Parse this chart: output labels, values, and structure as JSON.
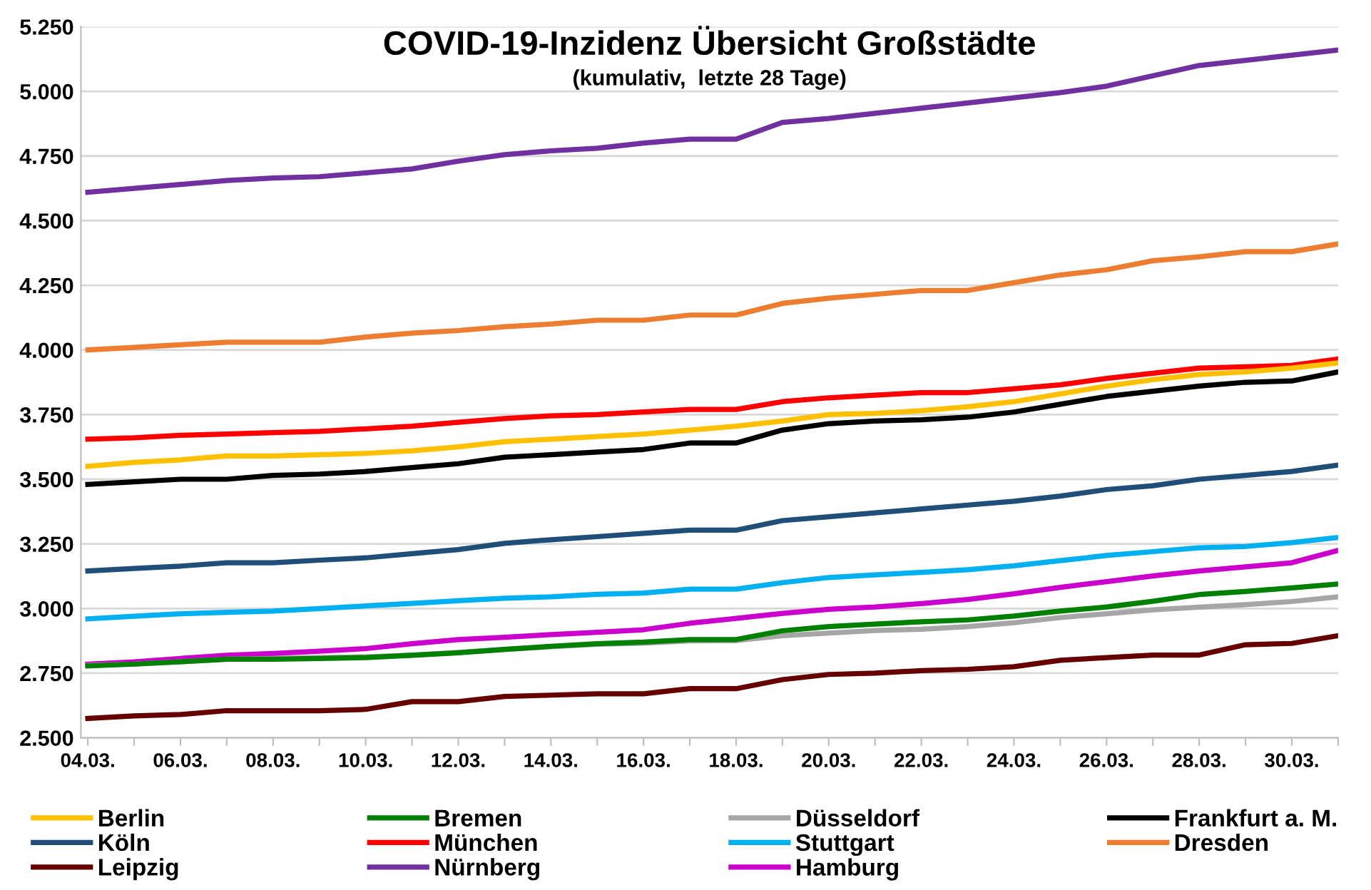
{
  "chart_data": {
    "type": "line",
    "title": "COVID-19-Inzidenz Übersicht Großstädte",
    "subtitle": "(kumulativ,  letzte 28 Tage)",
    "categories": [
      "04.03.",
      null,
      "06.03.",
      null,
      "08.03.",
      null,
      "10.03.",
      null,
      "12.03.",
      null,
      "14.03.",
      null,
      "16.03.",
      null,
      "18.03.",
      null,
      "20.03.",
      null,
      "22.03.",
      null,
      "24.03.",
      null,
      "26.03.",
      null,
      "28.03.",
      null,
      "30.03.",
      null
    ],
    "ylim": [
      2500,
      5250
    ],
    "yticks": [
      {
        "value": 2500,
        "label": "2.500"
      },
      {
        "value": 2750,
        "label": "2.750"
      },
      {
        "value": 3000,
        "label": "3.000"
      },
      {
        "value": 3250,
        "label": "3.250"
      },
      {
        "value": 3500,
        "label": "3.500"
      },
      {
        "value": 3750,
        "label": "3.750"
      },
      {
        "value": 4000,
        "label": "4.000"
      },
      {
        "value": 4250,
        "label": "4.250"
      },
      {
        "value": 4500,
        "label": "4.500"
      },
      {
        "value": 4750,
        "label": "4.750"
      },
      {
        "value": 5000,
        "label": "5.000"
      },
      {
        "value": 5250,
        "label": "5.250"
      }
    ],
    "grid": "y",
    "legend": "bottom",
    "line_style": "solid",
    "marker": "none",
    "series": [
      {
        "name": "Berlin",
        "color": "#ffc000",
        "values": [
          3550,
          3565,
          3575,
          3590,
          3590,
          3595,
          3600,
          3610,
          3625,
          3645,
          3655,
          3665,
          3675,
          3690,
          3705,
          3725,
          3750,
          3755,
          3765,
          3780,
          3800,
          3830,
          3860,
          3885,
          3905,
          3915,
          3930,
          3950
        ]
      },
      {
        "name": "Bremen",
        "color": "#008000",
        "values": [
          2778,
          2785,
          2794,
          2804,
          2804,
          2807,
          2810,
          2819,
          2829,
          2842,
          2854,
          2864,
          2870,
          2880,
          2880,
          2914,
          2930,
          2940,
          2949,
          2956,
          2971,
          2990,
          3006,
          3028,
          3054,
          3066,
          3080,
          3095
        ]
      },
      {
        "name": "Düsseldorf",
        "color": "#a6a6a6",
        "values": [
          2780,
          2785,
          2794,
          2804,
          2807,
          2810,
          2813,
          2820,
          2830,
          2842,
          2852,
          2862,
          2866,
          2875,
          2876,
          2895,
          2905,
          2915,
          2920,
          2930,
          2945,
          2965,
          2980,
          2995,
          3005,
          3015,
          3027,
          3045
        ]
      },
      {
        "name": "Frankfurt a. M.",
        "color": "#000000",
        "values": [
          3480,
          3490,
          3500,
          3500,
          3515,
          3520,
          3530,
          3545,
          3560,
          3585,
          3595,
          3605,
          3615,
          3640,
          3640,
          3690,
          3715,
          3725,
          3730,
          3740,
          3760,
          3790,
          3820,
          3840,
          3860,
          3875,
          3880,
          3915
        ]
      },
      {
        "name": "Köln",
        "color": "#1f4e79",
        "values": [
          3145,
          3155,
          3164,
          3177,
          3177,
          3187,
          3196,
          3212,
          3228,
          3252,
          3266,
          3278,
          3291,
          3303,
          3303,
          3340,
          3355,
          3370,
          3385,
          3400,
          3415,
          3435,
          3460,
          3475,
          3500,
          3515,
          3530,
          3555
        ]
      },
      {
        "name": "München",
        "color": "#ff0000",
        "values": [
          3655,
          3660,
          3670,
          3675,
          3680,
          3685,
          3695,
          3705,
          3720,
          3735,
          3745,
          3750,
          3760,
          3770,
          3770,
          3800,
          3815,
          3825,
          3835,
          3835,
          3850,
          3865,
          3890,
          3910,
          3930,
          3935,
          3940,
          3965
        ]
      },
      {
        "name": "Stuttgart",
        "color": "#00b0f0",
        "values": [
          2960,
          2970,
          2980,
          2985,
          2990,
          3000,
          3010,
          3020,
          3030,
          3040,
          3045,
          3055,
          3060,
          3075,
          3075,
          3100,
          3120,
          3130,
          3140,
          3150,
          3165,
          3185,
          3205,
          3220,
          3235,
          3240,
          3255,
          3275
        ]
      },
      {
        "name": "Dresden",
        "color": "#ed7d31",
        "values": [
          4000,
          4010,
          4020,
          4030,
          4030,
          4030,
          4050,
          4065,
          4075,
          4090,
          4100,
          4115,
          4115,
          4135,
          4135,
          4180,
          4200,
          4215,
          4230,
          4230,
          4260,
          4290,
          4310,
          4345,
          4360,
          4380,
          4380,
          4410
        ]
      },
      {
        "name": "Leipzig",
        "color": "#660000",
        "values": [
          2575,
          2585,
          2590,
          2605,
          2605,
          2605,
          2610,
          2640,
          2640,
          2660,
          2665,
          2670,
          2670,
          2690,
          2690,
          2725,
          2745,
          2750,
          2760,
          2765,
          2775,
          2800,
          2810,
          2820,
          2820,
          2860,
          2865,
          2895
        ]
      },
      {
        "name": "Nürnberg",
        "color": "#7030a0",
        "values": [
          4610,
          4625,
          4640,
          4655,
          4665,
          4670,
          4685,
          4700,
          4730,
          4755,
          4770,
          4780,
          4800,
          4815,
          4815,
          4880,
          4895,
          4915,
          4935,
          4955,
          4975,
          4995,
          5020,
          5060,
          5100,
          5120,
          5140,
          5160
        ]
      },
      {
        "name": "Hamburg",
        "color": "#cc00cc",
        "values": [
          2785,
          2794,
          2807,
          2819,
          2826,
          2835,
          2845,
          2864,
          2880,
          2889,
          2899,
          2908,
          2918,
          2943,
          2962,
          2981,
          2997,
          3006,
          3019,
          3035,
          3057,
          3082,
          3104,
          3126,
          3145,
          3161,
          3177,
          3225
        ]
      }
    ]
  }
}
